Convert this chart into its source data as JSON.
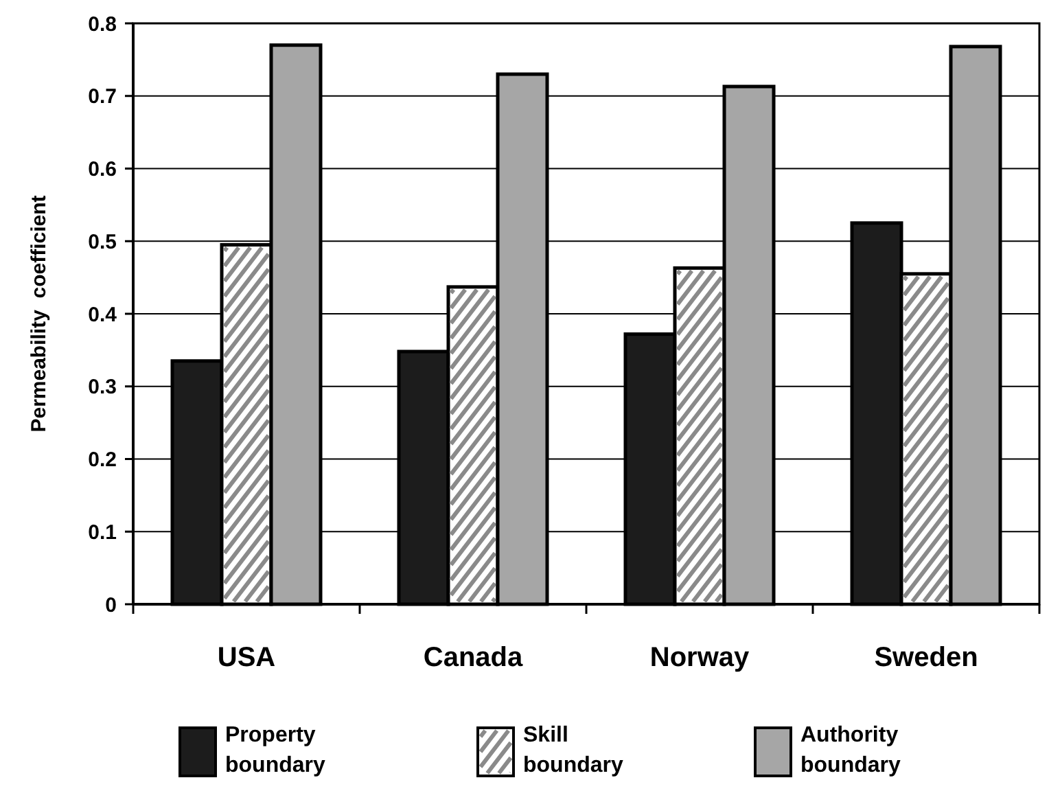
{
  "chart_data": {
    "type": "bar",
    "ylabel": "Permeability  coefficient",
    "categories": [
      "USA",
      "Canada",
      "Norway",
      "Sweden"
    ],
    "series": [
      {
        "name": "Property boundary",
        "color": "#1c1c1c",
        "values": [
          0.335,
          0.348,
          0.372,
          0.525
        ]
      },
      {
        "name": "Skill boundary",
        "color": "#ffffff",
        "values": [
          0.495,
          0.437,
          0.463,
          0.455
        ]
      },
      {
        "name": "Authority boundary",
        "color": "#a6a6a6",
        "values": [
          0.77,
          0.73,
          0.713,
          0.768
        ]
      }
    ],
    "ylim": [
      0,
      0.8
    ],
    "yticks": [
      0,
      0.1,
      0.2,
      0.3,
      0.4,
      0.5,
      0.6,
      0.7,
      0.8
    ],
    "grid": "y",
    "legend": "bottom"
  }
}
